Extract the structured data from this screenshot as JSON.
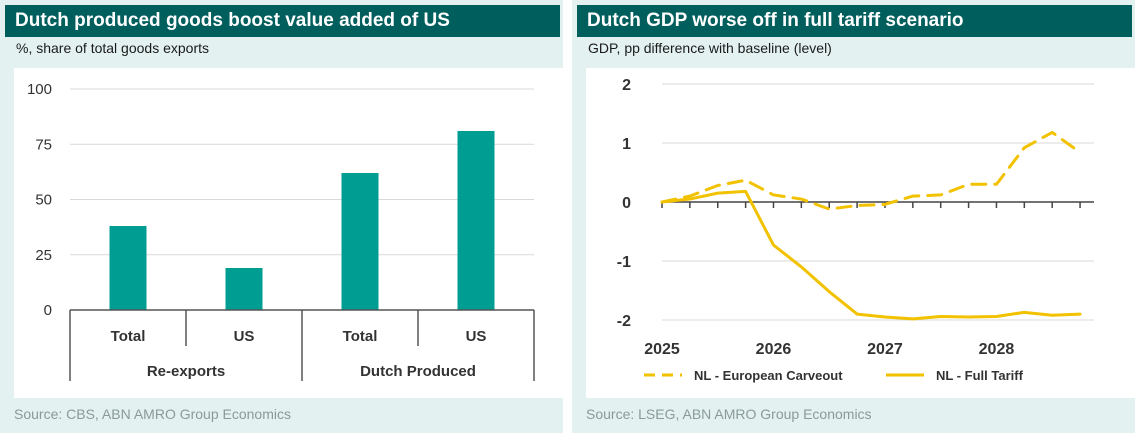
{
  "charts": [
    {
      "id": "left",
      "title": "Dutch produced goods boost value added of US",
      "subtitle": "%, share of total goods exports",
      "source": "Source: CBS, ABN AMRO Group Economics"
    },
    {
      "id": "right",
      "title": "Dutch GDP worse off in full tariff scenario",
      "subtitle": "GDP, pp difference with baseline (level)",
      "source": "Source: LSEG, ABN AMRO Group Economics"
    }
  ],
  "chart_data": [
    {
      "type": "bar",
      "title": "Dutch produced goods boost value added of US",
      "ylabel": "%, share of total goods exports",
      "ylim": [
        0,
        100
      ],
      "yticks": [
        0,
        25,
        50,
        75,
        100
      ],
      "grid": true,
      "categories": [
        "Total",
        "US",
        "Total",
        "US"
      ],
      "groups": [
        {
          "label": "Re-exports",
          "categories": [
            "Total",
            "US"
          ]
        },
        {
          "label": "Dutch Produced",
          "categories": [
            "Total",
            "US"
          ]
        }
      ],
      "values": [
        38,
        19,
        62,
        81
      ],
      "color": "#009d92"
    },
    {
      "type": "line",
      "title": "Dutch GDP worse off in full tariff scenario",
      "ylabel": "GDP, pp difference with baseline (level)",
      "ylim": [
        -2,
        2
      ],
      "yticks": [
        2,
        1,
        0,
        -1,
        -2
      ],
      "xlim": [
        2025,
        2028.875
      ],
      "xticks": [
        2025,
        2026,
        2027,
        2028
      ],
      "grid": true,
      "legend_position": "bottom",
      "series": [
        {
          "name": "NL - European Carveout",
          "style": "dashed",
          "color": "#f2c200",
          "x": [
            2025,
            2025.25,
            2025.5,
            2025.75,
            2026,
            2026.25,
            2026.5,
            2026.75,
            2027,
            2027.25,
            2027.5,
            2027.75,
            2028,
            2028.25,
            2028.5,
            2028.75
          ],
          "y": [
            0.0,
            0.1,
            0.28,
            0.37,
            0.12,
            0.05,
            -0.12,
            -0.06,
            -0.04,
            0.1,
            0.12,
            0.3,
            0.3,
            0.92,
            1.18,
            0.84
          ]
        },
        {
          "name": "NL - Full Tariff",
          "style": "solid",
          "color": "#f2c200",
          "x": [
            2025,
            2025.25,
            2025.5,
            2025.75,
            2026,
            2026.25,
            2026.5,
            2026.75,
            2027,
            2027.25,
            2027.5,
            2027.75,
            2028,
            2028.25,
            2028.5,
            2028.75
          ],
          "y": [
            0.0,
            0.05,
            0.15,
            0.18,
            -0.73,
            -1.1,
            -1.52,
            -1.9,
            -1.95,
            -1.98,
            -1.94,
            -1.95,
            -1.94,
            -1.87,
            -1.92,
            -1.9
          ]
        }
      ]
    }
  ]
}
